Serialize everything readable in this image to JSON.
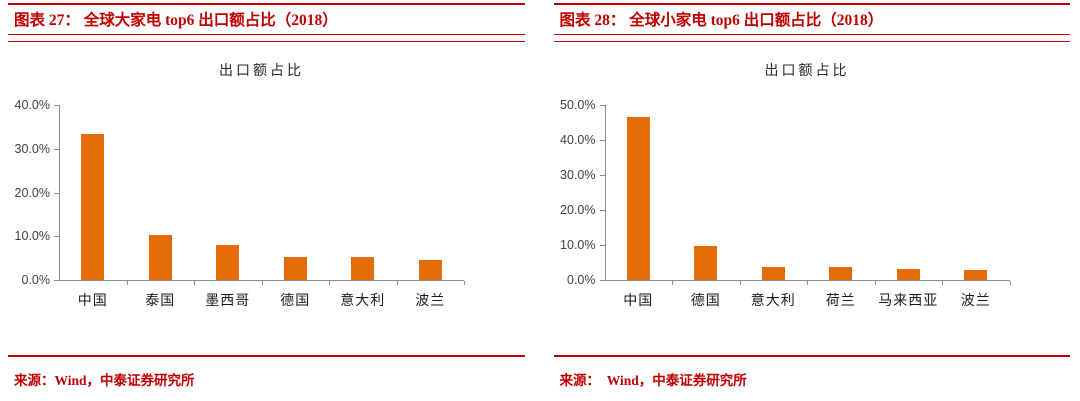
{
  "colors": {
    "accent_red": "#c00000",
    "bar_orange": "#e36c09",
    "axis_gray": "#8c8c8c"
  },
  "panels": [
    {
      "header": "图表 27： 全球大家电 top6 出口额占比（2018）",
      "source": "来源：Wind，中泰证券研究所"
    },
    {
      "header": "图表 28： 全球小家电 top6 出口额占比（2018）",
      "source": "来源：  Wind，中泰证券研究所"
    }
  ],
  "chart_data": [
    {
      "type": "bar",
      "title": "出口额占比",
      "categories": [
        "中国",
        "泰国",
        "墨西哥",
        "德国",
        "意大利",
        "波兰"
      ],
      "values": [
        33.4,
        10.3,
        8.1,
        5.2,
        5.2,
        4.5
      ],
      "xlabel": "",
      "ylabel": "",
      "ylim": [
        0,
        40
      ],
      "ytick_step": 10,
      "ytick_labels": [
        "0.0%",
        "10.0%",
        "20.0%",
        "30.0%",
        "40.0%"
      ],
      "bar_color": "#e36c09",
      "grid": false,
      "legend": "none"
    },
    {
      "type": "bar",
      "title": "出口额占比",
      "categories": [
        "中国",
        "德国",
        "意大利",
        "荷兰",
        "马来西亚",
        "波兰"
      ],
      "values": [
        46.5,
        9.8,
        3.8,
        3.6,
        3.2,
        2.9
      ],
      "xlabel": "",
      "ylabel": "",
      "ylim": [
        0,
        50
      ],
      "ytick_step": 10,
      "ytick_labels": [
        "0.0%",
        "10.0%",
        "20.0%",
        "30.0%",
        "40.0%",
        "50.0%"
      ],
      "bar_color": "#e36c09",
      "grid": false,
      "legend": "none"
    }
  ]
}
